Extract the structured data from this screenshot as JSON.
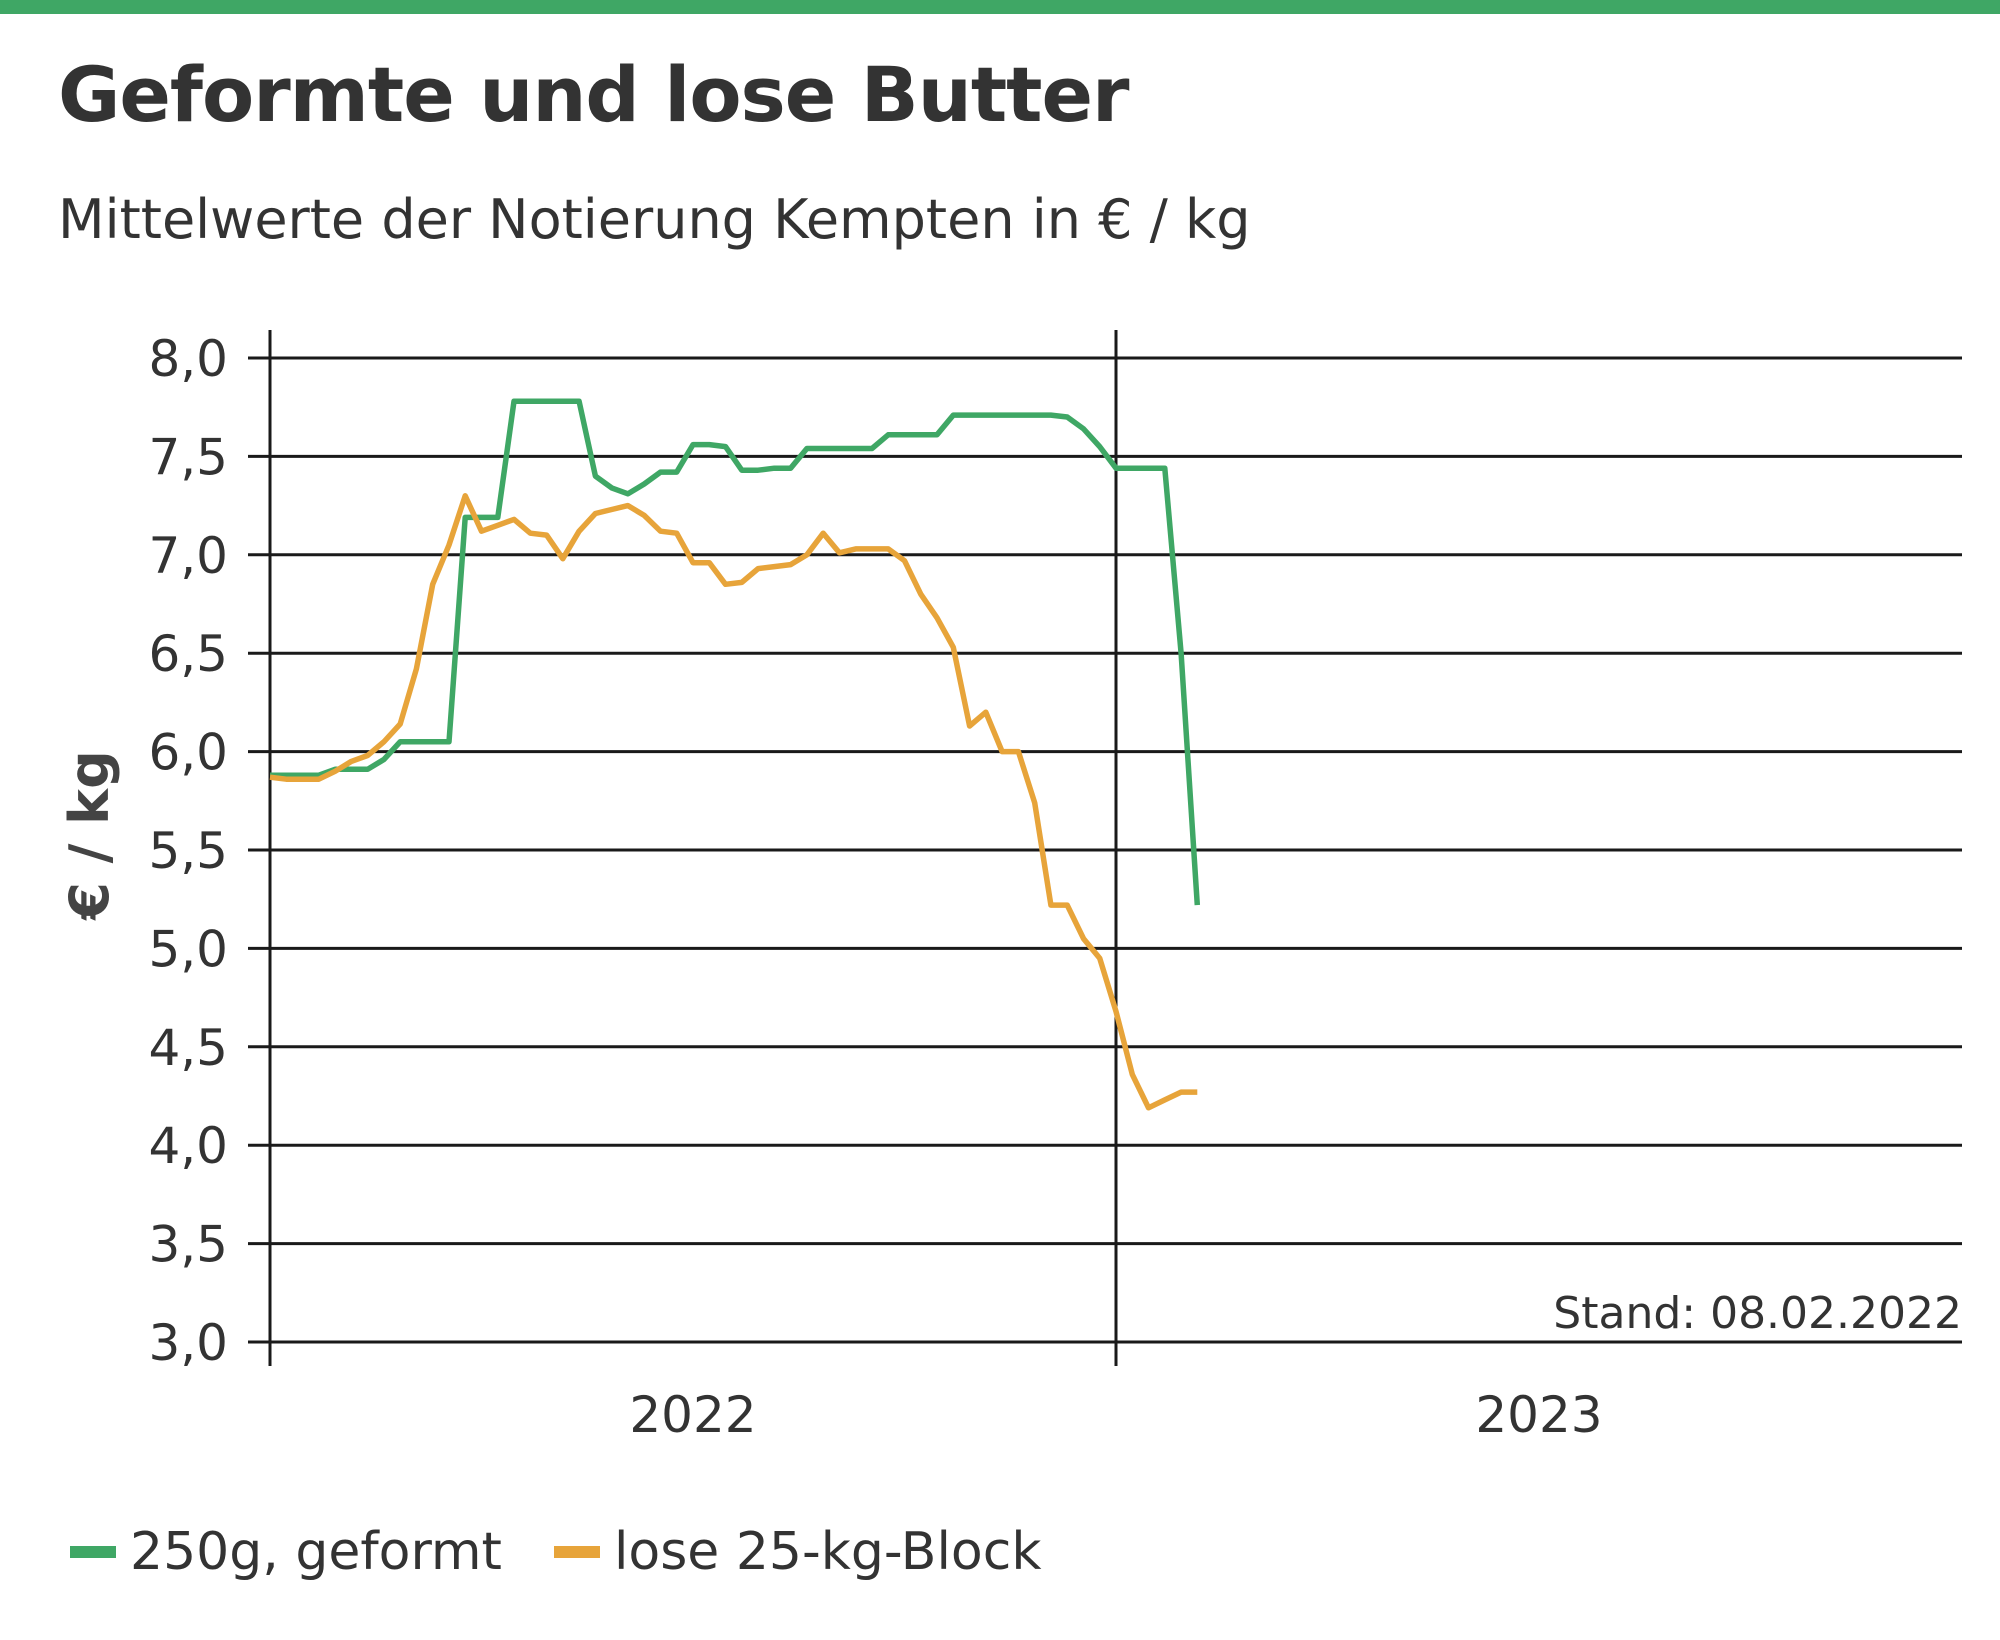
{
  "colors": {
    "top_bar": "#3fa765",
    "series_green": "#3fa765",
    "series_orange": "#e7a43a",
    "grid": "#1a1a1a",
    "text": "#333333"
  },
  "chart_data": {
    "type": "line",
    "title": "Geformte und lose Butter",
    "subtitle": "Mittelwerte der Notierung Kempten in € / kg",
    "ylabel": "€ / kg",
    "xlabel": "",
    "ylim": [
      3.0,
      8.0
    ],
    "xlim": [
      0,
      104
    ],
    "yticks": [
      "3,0",
      "3,5",
      "4,0",
      "4,5",
      "5,0",
      "5,5",
      "6,0",
      "6,5",
      "7,0",
      "7,5",
      "8,0"
    ],
    "xticks": [
      {
        "label": "2022",
        "x": 26
      },
      {
        "label": "2023",
        "x": 78
      }
    ],
    "grid": "horizontal",
    "legend_position": "bottom-left",
    "annotation": "Stand: 08.02.2022",
    "series": [
      {
        "name": "250g, geformt",
        "color": "#3fa765",
        "x": [
          0,
          3,
          4,
          6,
          7,
          8,
          9,
          10,
          11,
          12,
          13,
          14,
          15,
          16,
          17,
          18,
          19,
          20,
          21,
          22,
          23,
          24,
          25,
          26,
          27,
          28,
          29,
          30,
          31,
          32,
          33,
          34,
          35,
          36,
          37,
          38,
          39,
          40,
          41,
          42,
          43,
          44,
          45,
          46,
          47,
          48,
          49,
          50,
          51,
          52,
          53,
          54,
          55,
          56,
          57
        ],
        "y": [
          5.88,
          5.88,
          5.91,
          5.91,
          5.96,
          6.05,
          6.05,
          6.05,
          6.05,
          7.19,
          7.19,
          7.19,
          7.78,
          7.78,
          7.78,
          7.78,
          7.78,
          7.4,
          7.34,
          7.31,
          7.36,
          7.42,
          7.42,
          7.56,
          7.56,
          7.55,
          7.43,
          7.43,
          7.44,
          7.44,
          7.54,
          7.54,
          7.54,
          7.54,
          7.54,
          7.61,
          7.61,
          7.61,
          7.61,
          7.71,
          7.71,
          7.71,
          7.71,
          7.71,
          7.71,
          7.71,
          7.7,
          7.64,
          7.55,
          7.44,
          7.44,
          7.44,
          7.44,
          6.5,
          5.22
        ]
      },
      {
        "name": "lose 25-kg-Block",
        "color": "#e7a43a",
        "x": [
          0,
          1,
          2,
          3,
          4,
          5,
          6,
          7,
          8,
          9,
          10,
          11,
          12,
          13,
          14,
          15,
          16,
          17,
          18,
          19,
          20,
          21,
          22,
          23,
          24,
          25,
          26,
          27,
          28,
          29,
          30,
          31,
          32,
          33,
          34,
          35,
          36,
          37,
          38,
          39,
          40,
          41,
          42,
          43,
          44,
          45,
          46,
          47,
          48,
          49,
          50,
          51,
          52,
          53,
          54,
          55,
          56,
          57
        ],
        "y": [
          5.87,
          5.86,
          5.86,
          5.86,
          5.9,
          5.95,
          5.98,
          6.05,
          6.14,
          6.42,
          6.85,
          7.05,
          7.3,
          7.12,
          7.15,
          7.18,
          7.11,
          7.1,
          6.98,
          7.12,
          7.21,
          7.23,
          7.25,
          7.2,
          7.12,
          7.11,
          6.96,
          6.96,
          6.85,
          6.86,
          6.93,
          6.94,
          6.95,
          7.0,
          7.11,
          7.01,
          7.03,
          7.03,
          7.03,
          6.97,
          6.8,
          6.68,
          6.53,
          6.13,
          6.2,
          6.0,
          6.0,
          5.74,
          5.22,
          5.22,
          5.05,
          4.95,
          4.68,
          4.36,
          4.19,
          4.23,
          4.27,
          4.27
        ]
      }
    ]
  }
}
